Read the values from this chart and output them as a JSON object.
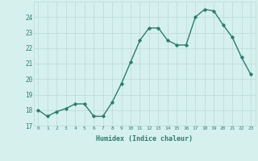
{
  "x": [
    0,
    1,
    2,
    3,
    4,
    5,
    6,
    7,
    8,
    9,
    10,
    11,
    12,
    13,
    14,
    15,
    16,
    17,
    18,
    19,
    20,
    21,
    22,
    23
  ],
  "y": [
    18.0,
    17.6,
    17.9,
    18.1,
    18.4,
    18.4,
    17.6,
    17.6,
    18.5,
    19.7,
    21.1,
    22.5,
    23.3,
    23.3,
    22.5,
    22.2,
    22.2,
    24.0,
    24.5,
    24.4,
    23.5,
    22.7,
    21.4,
    20.3
  ],
  "xlabel": "Humidex (Indice chaleur)",
  "ylim": [
    17,
    25
  ],
  "xlim": [
    -0.5,
    23.5
  ],
  "yticks": [
    17,
    18,
    19,
    20,
    21,
    22,
    23,
    24
  ],
  "xtick_labels": [
    "0",
    "1",
    "2",
    "3",
    "4",
    "5",
    "6",
    "7",
    "8",
    "9",
    "10",
    "11",
    "12",
    "13",
    "14",
    "15",
    "16",
    "17",
    "18",
    "19",
    "20",
    "21",
    "22",
    "23"
  ],
  "line_color": "#2e7d6e",
  "bg_color": "#d6f0ee",
  "grid_color": "#b8dbd8",
  "tick_color": "#2e7d6e",
  "label_color": "#2e7d6e",
  "marker": "D",
  "markersize": 1.8,
  "linewidth": 1.0
}
